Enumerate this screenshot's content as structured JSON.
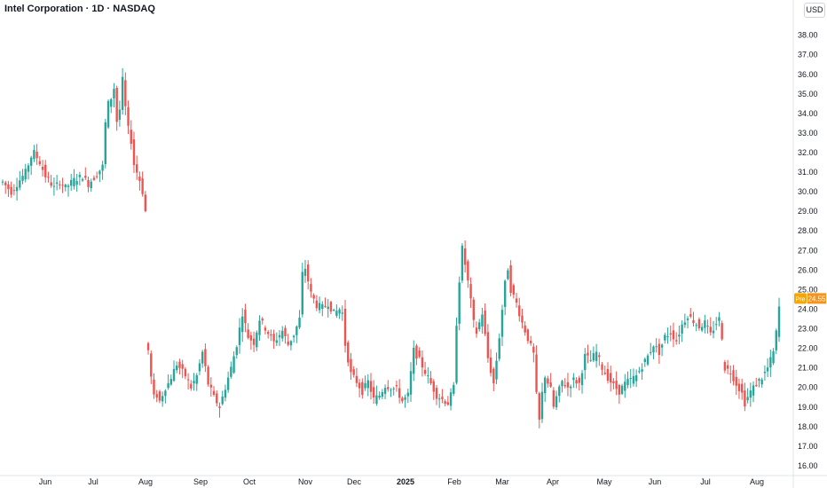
{
  "header": {
    "title": "Intel Corporation · 1D · NASDAQ",
    "currency": "USD"
  },
  "colors": {
    "up": "#26a69a",
    "down": "#ef5350",
    "axis_line": "#e0e3eb",
    "pre_badge_bg": "#f7a600",
    "price_badge_bg": "#f7931a"
  },
  "price_marker": {
    "pre_label": "Pre",
    "price": "24.55",
    "value": 24.55
  },
  "chart_data": {
    "type": "candlestick",
    "ylim": [
      15.5,
      38.8
    ],
    "yticks": [
      16,
      17,
      18,
      19,
      20,
      21,
      22,
      23,
      24,
      25,
      26,
      27,
      28,
      29,
      30,
      31,
      32,
      33,
      34,
      35,
      36,
      37,
      38
    ],
    "xticks": [
      "Jun",
      "Jul",
      "Aug",
      "Sep",
      "Oct",
      "Nov",
      "Dec",
      "2025",
      "Feb",
      "Mar",
      "Apr",
      "May",
      "Jun",
      "Jul",
      "Aug"
    ],
    "bold_xtick": "2025",
    "close_path": [
      [
        0,
        30.5
      ],
      [
        3,
        30.0
      ],
      [
        6,
        30.6
      ],
      [
        8,
        31.0
      ],
      [
        10,
        31.8
      ],
      [
        11,
        32.0
      ],
      [
        13,
        31.5
      ],
      [
        15,
        30.8
      ],
      [
        18,
        30.2
      ],
      [
        20,
        30.5
      ],
      [
        22,
        30.2
      ],
      [
        25,
        30.6
      ],
      [
        28,
        30.8
      ],
      [
        30,
        30.4
      ],
      [
        33,
        30.9
      ],
      [
        35,
        31.3
      ],
      [
        36,
        33.5
      ],
      [
        37,
        34.5
      ],
      [
        38,
        34.8
      ],
      [
        39,
        35.3
      ],
      [
        40,
        33.6
      ],
      [
        41,
        34.2
      ],
      [
        42,
        35.7
      ],
      [
        43,
        34.3
      ],
      [
        44,
        33.2
      ],
      [
        45,
        32.6
      ],
      [
        46,
        31.4
      ],
      [
        47,
        31.0
      ],
      [
        48,
        30.6
      ],
      [
        49,
        30.0
      ],
      [
        50,
        29.0
      ],
      [
        51,
        21.9
      ],
      [
        52,
        20.5
      ],
      [
        53,
        19.5
      ],
      [
        54,
        19.6
      ],
      [
        55,
        19.3
      ],
      [
        57,
        20.0
      ],
      [
        58,
        20.2
      ],
      [
        61,
        21.2
      ],
      [
        64,
        20.6
      ],
      [
        66,
        20.0
      ],
      [
        68,
        20.6
      ],
      [
        70,
        21.8
      ],
      [
        72,
        20.2
      ],
      [
        74,
        19.5
      ],
      [
        76,
        19.0
      ],
      [
        78,
        20.0
      ],
      [
        80,
        21.0
      ],
      [
        82,
        22.2
      ],
      [
        84,
        23.8
      ],
      [
        86,
        22.6
      ],
      [
        88,
        22.3
      ],
      [
        90,
        23.5
      ],
      [
        93,
        22.8
      ],
      [
        95,
        22.3
      ],
      [
        98,
        22.9
      ],
      [
        100,
        22.2
      ],
      [
        102,
        22.7
      ],
      [
        104,
        23.5
      ],
      [
        105,
        25.8
      ],
      [
        106,
        26.1
      ],
      [
        108,
        24.8
      ],
      [
        110,
        24.2
      ],
      [
        112,
        24.1
      ],
      [
        114,
        24.3
      ],
      [
        116,
        23.8
      ],
      [
        118,
        24.0
      ],
      [
        119,
        23.8
      ],
      [
        120,
        22.2
      ],
      [
        122,
        20.7
      ],
      [
        124,
        20.3
      ],
      [
        126,
        19.8
      ],
      [
        128,
        20.3
      ],
      [
        130,
        19.4
      ],
      [
        132,
        19.6
      ],
      [
        134,
        20.1
      ],
      [
        136,
        20.0
      ],
      [
        138,
        19.9
      ],
      [
        140,
        19.3
      ],
      [
        142,
        19.6
      ],
      [
        144,
        21.9
      ],
      [
        146,
        21.4
      ],
      [
        148,
        20.8
      ],
      [
        150,
        20.2
      ],
      [
        152,
        19.6
      ],
      [
        154,
        19.4
      ],
      [
        156,
        19.2
      ],
      [
        158,
        20.0
      ],
      [
        159,
        23.3
      ],
      [
        160,
        25.5
      ],
      [
        161,
        27.1
      ],
      [
        162,
        26.3
      ],
      [
        163,
        25.4
      ],
      [
        164,
        24.4
      ],
      [
        165,
        23.3
      ],
      [
        166,
        22.8
      ],
      [
        168,
        23.8
      ],
      [
        170,
        21.5
      ],
      [
        172,
        20.2
      ],
      [
        174,
        22.6
      ],
      [
        175,
        24.0
      ],
      [
        176,
        25.3
      ],
      [
        177,
        26.1
      ],
      [
        178,
        25.0
      ],
      [
        180,
        24.3
      ],
      [
        182,
        23.3
      ],
      [
        184,
        22.5
      ],
      [
        186,
        21.7
      ],
      [
        187,
        19.6
      ],
      [
        188,
        18.3
      ],
      [
        189,
        19.7
      ],
      [
        190,
        20.6
      ],
      [
        192,
        19.9
      ],
      [
        193,
        19.0
      ],
      [
        194,
        19.5
      ],
      [
        196,
        20.3
      ],
      [
        198,
        20.0
      ],
      [
        200,
        20.4
      ],
      [
        202,
        20.2
      ],
      [
        204,
        21.6
      ],
      [
        206,
        21.4
      ],
      [
        208,
        21.8
      ],
      [
        210,
        21.0
      ],
      [
        212,
        20.5
      ],
      [
        214,
        20.1
      ],
      [
        216,
        19.8
      ],
      [
        218,
        20.2
      ],
      [
        220,
        20.4
      ],
      [
        222,
        20.6
      ],
      [
        224,
        21.1
      ],
      [
        226,
        21.6
      ],
      [
        228,
        22.2
      ],
      [
        230,
        21.8
      ],
      [
        232,
        22.6
      ],
      [
        234,
        22.8
      ],
      [
        236,
        22.4
      ],
      [
        238,
        23.2
      ],
      [
        240,
        23.7
      ],
      [
        242,
        23.4
      ],
      [
        244,
        23.1
      ],
      [
        246,
        23.3
      ],
      [
        248,
        22.7
      ],
      [
        250,
        23.3
      ],
      [
        251,
        23.5
      ],
      [
        252,
        22.6
      ],
      [
        253,
        21.0
      ],
      [
        255,
        20.8
      ],
      [
        257,
        20.2
      ],
      [
        259,
        19.7
      ],
      [
        260,
        19.2
      ],
      [
        262,
        19.8
      ],
      [
        264,
        20.2
      ],
      [
        266,
        20.5
      ],
      [
        268,
        21.0
      ],
      [
        270,
        21.8
      ],
      [
        271,
        22.8
      ],
      [
        272,
        24.1
      ]
    ]
  }
}
